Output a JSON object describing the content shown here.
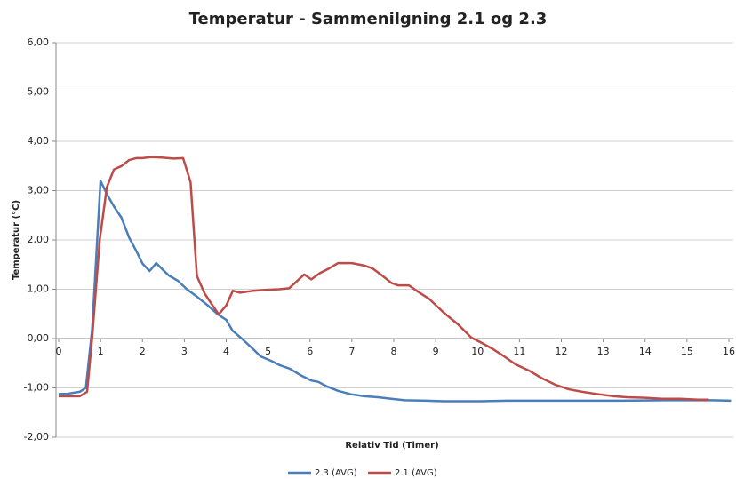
{
  "chart_data": {
    "type": "line",
    "title": "Temperatur - Sammenilgning 2.1 og 2.3",
    "x_label": "Relativ Tid (Timer)",
    "y_label": "Temperatur (°C)",
    "xlim": [
      0,
      16
    ],
    "xticks": [
      0,
      1,
      2,
      3,
      4,
      5,
      6,
      7,
      8,
      9,
      10,
      11,
      12,
      13,
      14,
      15,
      16
    ],
    "ylim": [
      -2,
      6
    ],
    "yticks": [
      {
        "value": -2,
        "label": "-2,00"
      },
      {
        "value": -1,
        "label": "-1,00"
      },
      {
        "value": 0,
        "label": "0,00"
      },
      {
        "value": 1,
        "label": "1,00"
      },
      {
        "value": 2,
        "label": "2,00"
      },
      {
        "value": 3,
        "label": "3,00"
      },
      {
        "value": 4,
        "label": "4,00"
      },
      {
        "value": 5,
        "label": "5,00"
      },
      {
        "value": 6,
        "label": "6,00"
      }
    ],
    "grid": true,
    "legend": "bottom",
    "series": [
      {
        "name": "2.3 (AVG)",
        "color": "#4a7ebb",
        "x": [
          0,
          0.2,
          0.5,
          0.65,
          0.8,
          1.0,
          1.15,
          1.32,
          1.5,
          1.68,
          1.85,
          2.0,
          2.17,
          2.33,
          2.48,
          2.63,
          2.85,
          3.06,
          3.3,
          3.55,
          3.8,
          4.0,
          4.15,
          4.37,
          4.6,
          4.82,
          5.07,
          5.28,
          5.52,
          5.77,
          6.03,
          6.2,
          6.4,
          6.67,
          6.98,
          7.3,
          7.62,
          7.94,
          8.26,
          8.79,
          9.2,
          10.06,
          10.7,
          11.34,
          12.4,
          13.46,
          14.5,
          15.16,
          15.58,
          16.05
        ],
        "values": [
          -1.12,
          -1.12,
          -1.08,
          -1.0,
          0.2,
          3.2,
          2.93,
          2.68,
          2.45,
          2.05,
          1.78,
          1.52,
          1.37,
          1.53,
          1.4,
          1.28,
          1.17,
          1.0,
          0.85,
          0.68,
          0.49,
          0.38,
          0.16,
          0,
          -0.18,
          -0.36,
          -0.45,
          -0.54,
          -0.61,
          -0.74,
          -0.85,
          -0.88,
          -0.97,
          -1.06,
          -1.13,
          -1.17,
          -1.19,
          -1.22,
          -1.25,
          -1.26,
          -1.27,
          -1.27,
          -1.26,
          -1.26,
          -1.26,
          -1.26,
          -1.25,
          -1.25,
          -1.25,
          -1.26
        ]
      },
      {
        "name": "2.1 (AVG)",
        "color": "#be4b48",
        "x": [
          0,
          0.5,
          0.68,
          0.8,
          0.98,
          1.15,
          1.32,
          1.5,
          1.68,
          1.85,
          2.0,
          2.2,
          2.46,
          2.74,
          2.97,
          3.15,
          3.3,
          3.48,
          3.62,
          3.82,
          4.0,
          4.16,
          4.33,
          4.65,
          4.97,
          5.27,
          5.5,
          5.67,
          5.86,
          6.03,
          6.24,
          6.45,
          6.67,
          7.0,
          7.3,
          7.5,
          7.72,
          7.94,
          8.1,
          8.36,
          8.58,
          8.85,
          9.2,
          9.53,
          9.85,
          10.06,
          10.34,
          10.6,
          10.9,
          11.23,
          11.55,
          11.87,
          12.19,
          12.5,
          12.82,
          13.25,
          13.57,
          14.0,
          14.4,
          14.84,
          15.27,
          15.52
        ],
        "values": [
          -1.17,
          -1.17,
          -1.08,
          0.02,
          2.0,
          3.07,
          3.43,
          3.5,
          3.62,
          3.66,
          3.66,
          3.68,
          3.67,
          3.65,
          3.66,
          3.17,
          1.27,
          0.92,
          0.74,
          0.49,
          0.67,
          0.97,
          0.93,
          0.97,
          0.99,
          1.0,
          1.02,
          1.15,
          1.3,
          1.2,
          1.33,
          1.42,
          1.53,
          1.53,
          1.48,
          1.42,
          1.28,
          1.13,
          1.08,
          1.08,
          0.95,
          0.8,
          0.52,
          0.29,
          0.02,
          -0.07,
          -0.2,
          -0.34,
          -0.52,
          -0.65,
          -0.81,
          -0.94,
          -1.03,
          -1.08,
          -1.12,
          -1.17,
          -1.19,
          -1.2,
          -1.22,
          -1.22,
          -1.24,
          -1.24
        ]
      }
    ]
  }
}
